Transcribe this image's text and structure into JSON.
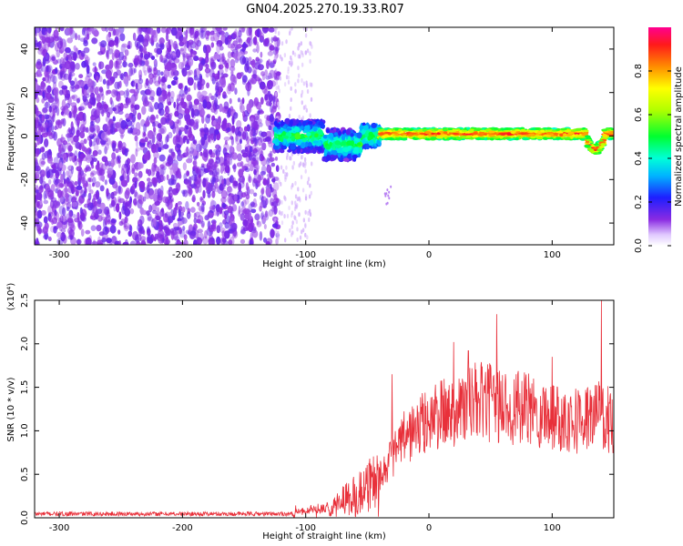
{
  "figure": {
    "title": "GN04.2025.270.19.33.R07"
  },
  "chart_data": [
    {
      "type": "heatmap",
      "xlabel": "Height of straight line (km)",
      "ylabel": "Frequency (Hz)",
      "xlim": [
        -320,
        150
      ],
      "ylim": [
        -50,
        50
      ],
      "x_ticks": [
        -300,
        -200,
        -100,
        0,
        100
      ],
      "y_ticks": [
        -40,
        -20,
        0,
        20,
        40
      ],
      "grid": false,
      "regions": [
        {
          "x": [
            -320,
            -125
          ],
          "description_value": "sparse scattered low amplitude (~0.1-0.2) across all frequencies"
        },
        {
          "x": [
            -125,
            -40
          ],
          "center_freq": 0,
          "peak_amplitude": 0.5
        },
        {
          "x": [
            -40,
            150
          ],
          "center_freq": 1,
          "peak_amplitude": 0.95
        }
      ],
      "colorbar": {
        "label": "Normalized spectral amplitude",
        "range": [
          0.0,
          1.0
        ],
        "ticks": [
          0.0,
          0.2,
          0.4,
          0.6,
          0.8
        ]
      }
    },
    {
      "type": "line",
      "xlabel": "Height of straight line (km)",
      "ylabel": "SNR (10 * v/v)",
      "y_multiplier": "(x10⁴)",
      "xlim": [
        -320,
        150
      ],
      "ylim": [
        0.0,
        2.5
      ],
      "x_ticks": [
        -300,
        -200,
        -100,
        0,
        100
      ],
      "y_ticks": [
        0.0,
        0.5,
        1.0,
        1.5,
        2.0,
        2.5
      ],
      "grid": false,
      "series": [
        {
          "color": "#e8303a",
          "x": [
            -320,
            -120,
            -100,
            -80,
            -60,
            -40,
            -30,
            -20,
            0,
            20,
            40,
            60,
            80,
            100,
            120,
            140,
            150
          ],
          "values": [
            0.05,
            0.05,
            0.06,
            0.12,
            0.28,
            0.45,
            0.65,
            0.85,
            1.05,
            1.15,
            1.25,
            1.2,
            1.15,
            1.1,
            1.05,
            1.1,
            1.0
          ],
          "peaks": [
            {
              "x": -30,
              "y": 1.65
            },
            {
              "x": 20,
              "y": 2.02
            },
            {
              "x": 32,
              "y": 1.92
            },
            {
              "x": 55,
              "y": 2.34
            },
            {
              "x": 100,
              "y": 1.85
            },
            {
              "x": 140,
              "y": 2.5
            }
          ]
        }
      ]
    }
  ]
}
